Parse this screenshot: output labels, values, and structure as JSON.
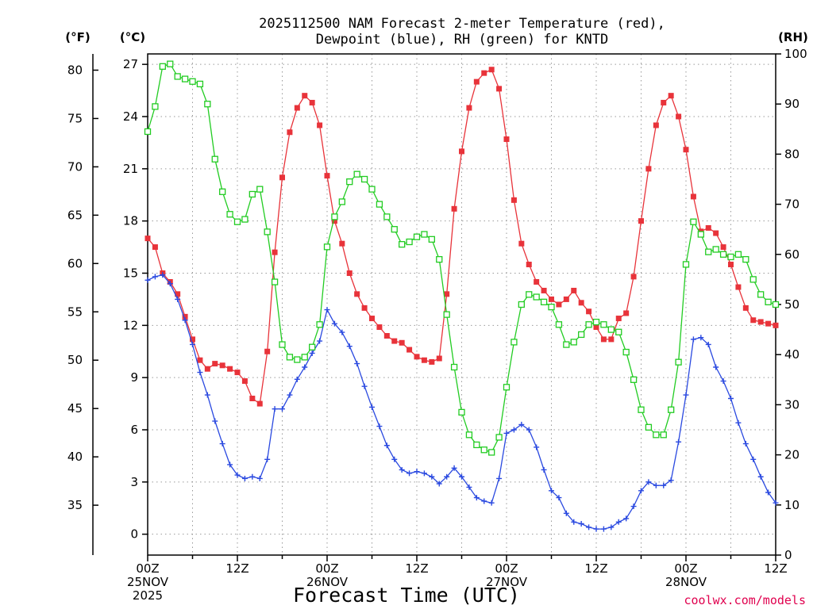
{
  "chart_data": {
    "type": "line",
    "title_lines": [
      "2025112500 NAM Forecast 2-meter Temperature (red),",
      "Dewpoint (blue), RH (green) for KNTD"
    ],
    "xlabel": "Forecast Time (UTC)",
    "credit": "coolwx.com/models",
    "units": {
      "fahrenheit": "(°F)",
      "celsius": "(°C)",
      "rh": "(RH)"
    },
    "x_range_hours": [
      0,
      84
    ],
    "celsius_range": [
      -1.2,
      27.6
    ],
    "rh_range": [
      0,
      100
    ],
    "f_ticks": [
      80,
      75,
      70,
      65,
      60,
      55,
      50,
      45,
      40,
      35
    ],
    "c_ticks": [
      27,
      24,
      21,
      18,
      15,
      12,
      9,
      6,
      3,
      0
    ],
    "rh_ticks": [
      100,
      90,
      80,
      70,
      60,
      50,
      40,
      30,
      20,
      10,
      0
    ],
    "x_ticks": [
      {
        "hour": 0,
        "lines": [
          "00Z",
          "25NOV",
          "2025"
        ]
      },
      {
        "hour": 12,
        "lines": [
          "12Z"
        ]
      },
      {
        "hour": 24,
        "lines": [
          "00Z",
          "26NOV"
        ]
      },
      {
        "hour": 36,
        "lines": [
          "12Z"
        ]
      },
      {
        "hour": 48,
        "lines": [
          "00Z",
          "27NOV"
        ]
      },
      {
        "hour": 60,
        "lines": [
          "12Z"
        ]
      },
      {
        "hour": 72,
        "lines": [
          "00Z",
          "28NOV"
        ]
      },
      {
        "hour": 84,
        "lines": [
          "12Z"
        ]
      }
    ],
    "grid": true,
    "series": [
      {
        "name": "Temperature",
        "unit": "C",
        "color": "#e8333a",
        "marker": "filled-square",
        "x": [
          0,
          1,
          2,
          3,
          4,
          5,
          6,
          7,
          8,
          9,
          10,
          11,
          12,
          13,
          14,
          15,
          16,
          17,
          18,
          19,
          20,
          21,
          22,
          23,
          24,
          25,
          26,
          27,
          28,
          29,
          30,
          31,
          32,
          33,
          34,
          35,
          36,
          37,
          38,
          39,
          40,
          41,
          42,
          43,
          44,
          45,
          46,
          47,
          48,
          49,
          50,
          51,
          52,
          53,
          54,
          55,
          56,
          57,
          58,
          59,
          60,
          61,
          62,
          63,
          64,
          65,
          66,
          67,
          68,
          69,
          70,
          71,
          72,
          73,
          74,
          75,
          76,
          77,
          78,
          79,
          80,
          81,
          82,
          83,
          84
        ],
        "values": [
          17.0,
          16.5,
          15.0,
          14.5,
          13.8,
          12.5,
          11.2,
          10.0,
          9.5,
          9.8,
          9.7,
          9.5,
          9.3,
          8.8,
          7.8,
          7.5,
          10.5,
          16.2,
          20.5,
          23.1,
          24.5,
          25.2,
          24.8,
          23.5,
          20.6,
          18.0,
          16.7,
          15.0,
          13.8,
          13.0,
          12.4,
          11.9,
          11.4,
          11.1,
          11.0,
          10.6,
          10.2,
          10.0,
          9.9,
          10.1,
          13.8,
          18.7,
          22.0,
          24.5,
          26.0,
          26.5,
          26.7,
          25.6,
          22.7,
          19.2,
          16.7,
          15.5,
          14.5,
          14.0,
          13.5,
          13.2,
          13.5,
          14.0,
          13.3,
          12.8,
          11.9,
          11.2,
          11.2,
          12.4,
          12.7,
          14.8,
          18.0,
          21.0,
          23.5,
          24.8,
          25.2,
          24.0,
          22.1,
          19.4,
          17.4,
          17.6,
          17.3,
          16.5,
          15.5,
          14.2,
          13.0,
          12.3,
          12.2,
          12.1,
          12.0
        ]
      },
      {
        "name": "Dewpoint",
        "unit": "C",
        "color": "#2a49e0",
        "marker": "plus",
        "x": [
          0,
          1,
          2,
          3,
          4,
          5,
          6,
          7,
          8,
          9,
          10,
          11,
          12,
          13,
          14,
          15,
          16,
          17,
          18,
          19,
          20,
          21,
          22,
          23,
          24,
          25,
          26,
          27,
          28,
          29,
          30,
          31,
          32,
          33,
          34,
          35,
          36,
          37,
          38,
          39,
          40,
          41,
          42,
          43,
          44,
          45,
          46,
          47,
          48,
          49,
          50,
          51,
          52,
          53,
          54,
          55,
          56,
          57,
          58,
          59,
          60,
          61,
          62,
          63,
          64,
          65,
          66,
          67,
          68,
          69,
          70,
          71,
          72,
          73,
          74,
          75,
          76,
          77,
          78,
          79,
          80,
          81,
          82,
          83,
          84
        ],
        "values": [
          14.6,
          14.8,
          14.9,
          14.4,
          13.5,
          12.3,
          10.9,
          9.3,
          8.0,
          6.5,
          5.2,
          4.0,
          3.4,
          3.2,
          3.3,
          3.2,
          4.3,
          7.2,
          7.2,
          8.0,
          8.9,
          9.6,
          10.4,
          11.1,
          12.9,
          12.1,
          11.6,
          10.8,
          9.8,
          8.5,
          7.3,
          6.2,
          5.1,
          4.3,
          3.7,
          3.5,
          3.6,
          3.5,
          3.3,
          2.9,
          3.3,
          3.8,
          3.3,
          2.7,
          2.1,
          1.9,
          1.8,
          3.2,
          5.8,
          6.0,
          6.3,
          6.0,
          5.0,
          3.7,
          2.5,
          2.1,
          1.2,
          0.7,
          0.6,
          0.4,
          0.3,
          0.3,
          0.4,
          0.7,
          0.9,
          1.6,
          2.5,
          3.0,
          2.8,
          2.8,
          3.1,
          5.3,
          8.0,
          11.2,
          11.3,
          10.9,
          9.6,
          8.8,
          7.8,
          6.4,
          5.2,
          4.3,
          3.3,
          2.4,
          1.8
        ]
      },
      {
        "name": "RH",
        "unit": "%",
        "color": "#22cc22",
        "marker": "open-square",
        "x": [
          0,
          1,
          2,
          3,
          4,
          5,
          6,
          7,
          8,
          9,
          10,
          11,
          12,
          13,
          14,
          15,
          16,
          17,
          18,
          19,
          20,
          21,
          22,
          23,
          24,
          25,
          26,
          27,
          28,
          29,
          30,
          31,
          32,
          33,
          34,
          35,
          36,
          37,
          38,
          39,
          40,
          41,
          42,
          43,
          44,
          45,
          46,
          47,
          48,
          49,
          50,
          51,
          52,
          53,
          54,
          55,
          56,
          57,
          58,
          59,
          60,
          61,
          62,
          63,
          64,
          65,
          66,
          67,
          68,
          69,
          70,
          71,
          72,
          73,
          74,
          75,
          76,
          77,
          78,
          79,
          80,
          81,
          82,
          83,
          84
        ],
        "values": [
          84.5,
          89.5,
          97.5,
          98,
          95.5,
          95,
          94.5,
          94,
          90,
          79,
          72.5,
          68,
          66.5,
          67,
          72,
          73,
          64.5,
          54.5,
          42,
          39.5,
          39,
          39.5,
          41.5,
          46,
          61.5,
          67.5,
          70.5,
          74.5,
          76,
          75,
          73,
          70,
          67.5,
          65,
          62,
          62.5,
          63.5,
          64,
          63,
          59,
          48,
          37.5,
          28.5,
          24,
          22,
          21,
          20.5,
          23.5,
          33.5,
          42.5,
          50,
          52,
          51.5,
          50.5,
          49.5,
          46,
          42,
          42.5,
          44,
          46,
          46.5,
          46,
          45,
          44.5,
          40.5,
          35,
          29,
          25.5,
          24,
          24,
          29,
          38.5,
          58,
          66.5,
          64,
          60.5,
          61,
          60,
          59.5,
          60,
          59,
          55,
          52,
          50.5,
          50
        ]
      }
    ]
  }
}
